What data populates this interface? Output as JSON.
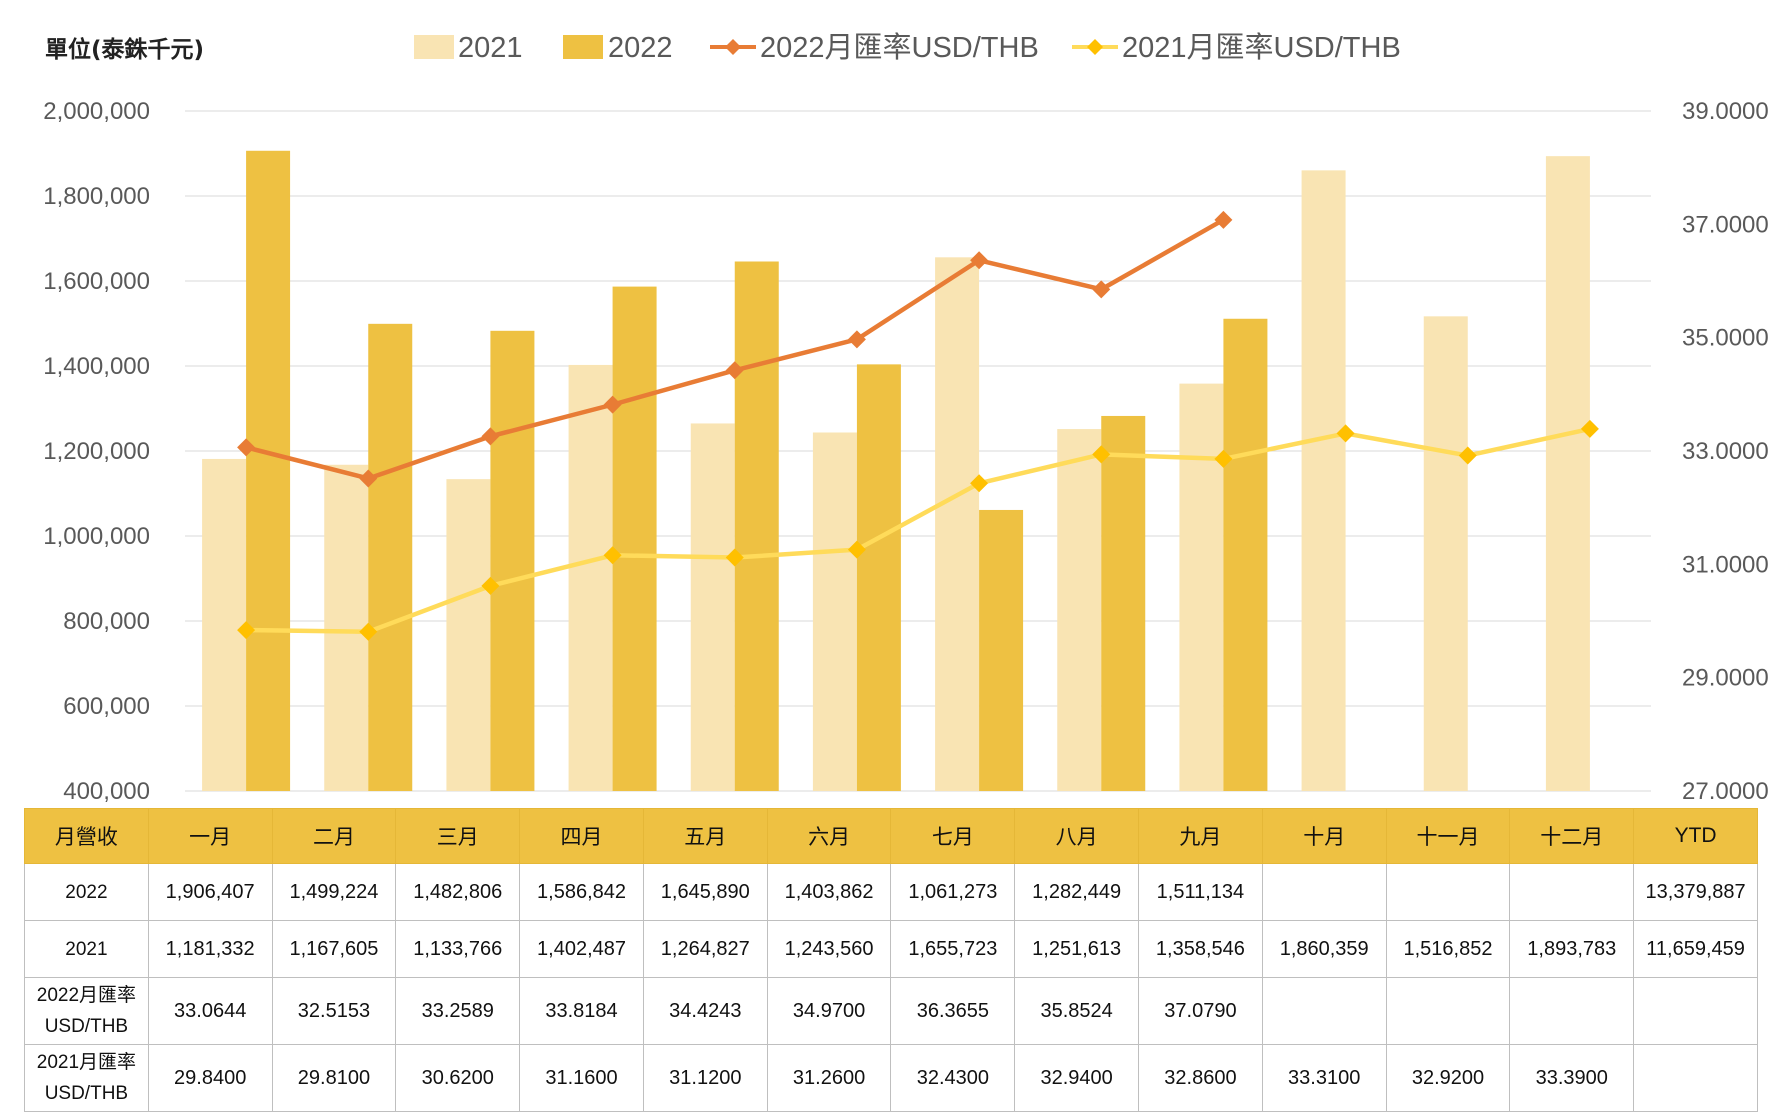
{
  "chart_data": {
    "type": "bar",
    "unit_label": "單位(泰銖千元)",
    "categories": [
      "一月",
      "二月",
      "三月",
      "四月",
      "五月",
      "六月",
      "七月",
      "八月",
      "九月",
      "十月",
      "十一月",
      "十二月"
    ],
    "series": [
      {
        "name": "2021",
        "kind": "bar",
        "axis": "left",
        "color": "#f9e4b3",
        "values": [
          1181332,
          1167605,
          1133766,
          1402487,
          1264827,
          1243560,
          1655723,
          1251613,
          1358546,
          1860359,
          1516852,
          1893783
        ]
      },
      {
        "name": "2022",
        "kind": "bar",
        "axis": "left",
        "color": "#eec142",
        "values": [
          1906407,
          1499224,
          1482806,
          1586842,
          1645890,
          1403862,
          1061273,
          1282449,
          1511134,
          null,
          null,
          null
        ]
      },
      {
        "name": "2022月匯率USD/THB",
        "kind": "line",
        "axis": "right",
        "color": "#e87c35",
        "marker_color": "#e87c35",
        "values": [
          33.0644,
          32.5153,
          33.2589,
          33.8184,
          34.4243,
          34.97,
          36.3655,
          35.8524,
          37.079,
          null,
          null,
          null
        ]
      },
      {
        "name": "2021月匯率USD/THB",
        "kind": "line",
        "axis": "right",
        "color": "#ffdb5a",
        "marker_color": "#ffc000",
        "values": [
          29.84,
          29.81,
          30.62,
          31.16,
          31.12,
          31.26,
          32.43,
          32.94,
          32.86,
          33.31,
          32.92,
          33.39
        ]
      }
    ],
    "y_left": {
      "min": 400000,
      "max": 2000000,
      "step": 200000,
      "ticks": [
        "2,000,000",
        "1,800,000",
        "1,600,000",
        "1,400,000",
        "1,200,000",
        "1,000,000",
        "800,000",
        "600,000",
        "400,000"
      ]
    },
    "y_right": {
      "min": 27,
      "max": 39,
      "step": 2,
      "ticks": [
        "39.0000",
        "37.0000",
        "35.0000",
        "33.0000",
        "31.0000",
        "29.0000",
        "27.0000"
      ]
    },
    "legend_position": "top",
    "grid": true
  },
  "table": {
    "header": [
      "月營收",
      "一月",
      "二月",
      "三月",
      "四月",
      "五月",
      "六月",
      "七月",
      "八月",
      "九月",
      "十月",
      "十一月",
      "十二月",
      "YTD"
    ],
    "rows": [
      {
        "label": "2022",
        "cells": [
          "1,906,407",
          "1,499,224",
          "1,482,806",
          "1,586,842",
          "1,645,890",
          "1,403,862",
          "1,061,273",
          "1,282,449",
          "1,511,134",
          "",
          "",
          "",
          "13,379,887"
        ]
      },
      {
        "label": "2021",
        "cells": [
          "1,181,332",
          "1,167,605",
          "1,133,766",
          "1,402,487",
          "1,264,827",
          "1,243,560",
          "1,655,723",
          "1,251,613",
          "1,358,546",
          "1,860,359",
          "1,516,852",
          "1,893,783",
          "11,659,459"
        ]
      },
      {
        "label_line1": "2022月匯率",
        "label_line2": "USD/THB",
        "cells": [
          "33.0644",
          "32.5153",
          "33.2589",
          "33.8184",
          "34.4243",
          "34.9700",
          "36.3655",
          "35.8524",
          "37.0790",
          "",
          "",
          "",
          ""
        ]
      },
      {
        "label_line1": "2021月匯率",
        "label_line2": "USD/THB",
        "cells": [
          "29.8400",
          "29.8100",
          "30.6200",
          "31.1600",
          "31.1200",
          "31.2600",
          "32.4300",
          "32.9400",
          "32.8600",
          "33.3100",
          "32.9200",
          "33.3900",
          ""
        ]
      }
    ]
  }
}
